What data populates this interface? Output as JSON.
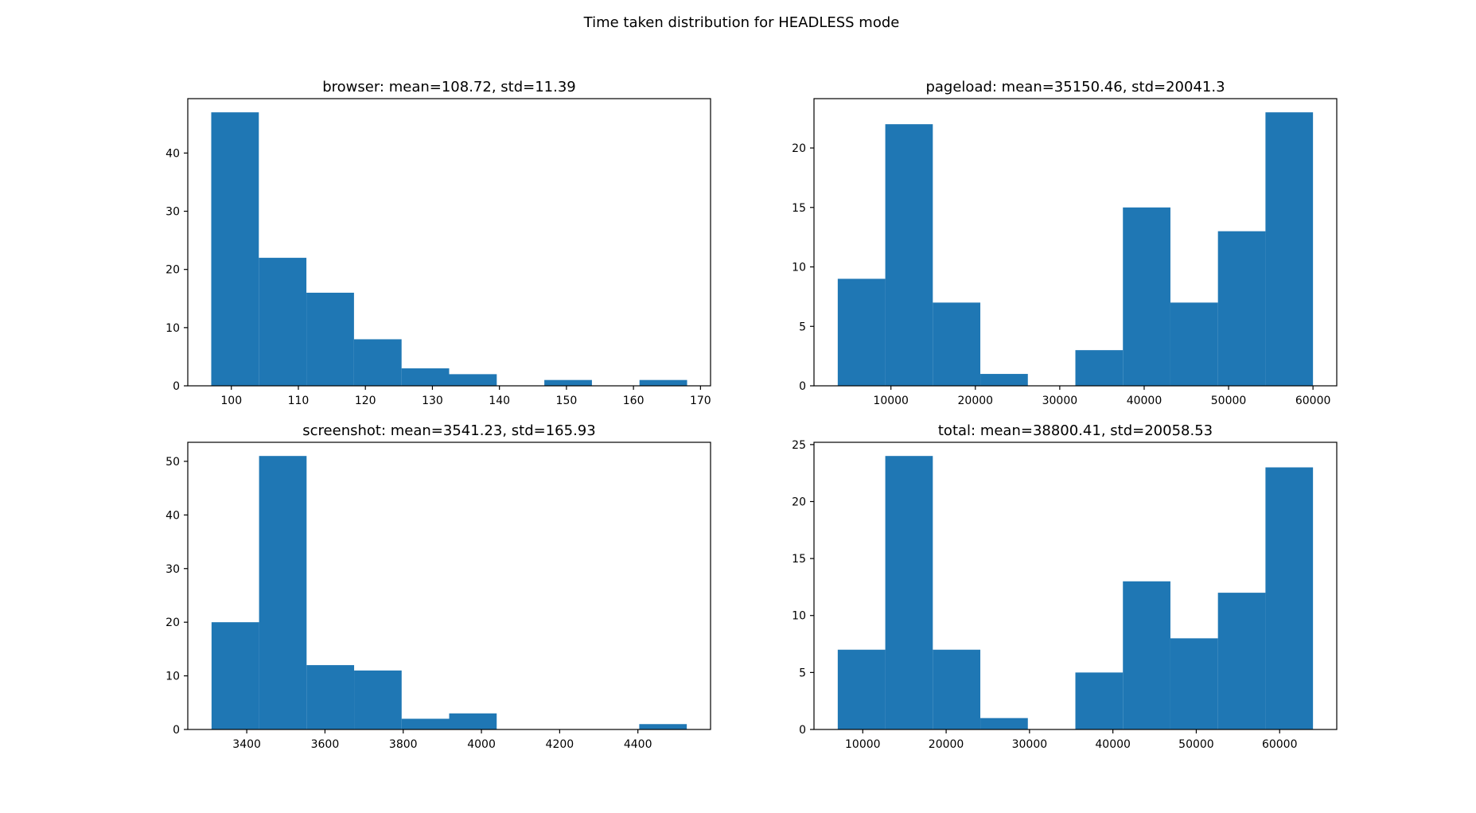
{
  "figure": {
    "title": "Time taken distribution for HEADLESS mode"
  },
  "colors": {
    "bar": "#1f77b4"
  },
  "chart_data": [
    {
      "type": "bar",
      "subtype": "histogram",
      "title": "browser: mean=108.72, std=11.39",
      "bin_edges": [
        97,
        104.1,
        111.2,
        118.3,
        125.4,
        132.5,
        139.6,
        146.7,
        153.8,
        160.9,
        168
      ],
      "values": [
        47,
        22,
        16,
        8,
        3,
        2,
        0,
        1,
        0,
        1
      ],
      "xlim": [
        93.5,
        171.5
      ],
      "ylim": [
        0,
        49.35
      ],
      "xticks": [
        100,
        110,
        120,
        130,
        140,
        150,
        160,
        170
      ],
      "yticks": [
        0,
        10,
        20,
        30,
        40
      ],
      "grid": false
    },
    {
      "type": "bar",
      "subtype": "histogram",
      "title": "pageload: mean=35150.46, std=20041.3",
      "bin_edges": [
        3700,
        9330,
        14960,
        20590,
        26220,
        31850,
        37480,
        43110,
        48740,
        54370,
        60000
      ],
      "values": [
        9,
        22,
        7,
        1,
        0,
        3,
        15,
        7,
        13,
        23
      ],
      "xlim": [
        885,
        62815
      ],
      "ylim": [
        0,
        24.15
      ],
      "xticks": [
        10000,
        20000,
        30000,
        40000,
        50000,
        60000
      ],
      "yticks": [
        0,
        5,
        10,
        15,
        20
      ],
      "grid": false
    },
    {
      "type": "bar",
      "subtype": "histogram",
      "title": "screenshot: mean=3541.23, std=165.93",
      "bin_edges": [
        3310,
        3431.5,
        3553,
        3674.5,
        3796,
        3917.5,
        4039,
        4160.5,
        4282,
        4403.5,
        4525
      ],
      "values": [
        20,
        51,
        12,
        11,
        2,
        3,
        0,
        0,
        0,
        1
      ],
      "xlim": [
        3249.25,
        4585.75
      ],
      "ylim": [
        0,
        53.55
      ],
      "xticks": [
        3400,
        3600,
        3800,
        4000,
        4200,
        4400
      ],
      "yticks": [
        0,
        10,
        20,
        30,
        40,
        50
      ],
      "grid": false
    },
    {
      "type": "bar",
      "subtype": "histogram",
      "title": "total: mean=38800.41, std=20058.53",
      "bin_edges": [
        7000,
        12700,
        18400,
        24100,
        29800,
        35500,
        41200,
        46900,
        52600,
        58300,
        64000
      ],
      "values": [
        7,
        24,
        7,
        1,
        0,
        5,
        13,
        8,
        12,
        23
      ],
      "xlim": [
        4150,
        66850
      ],
      "ylim": [
        0,
        25.2
      ],
      "xticks": [
        10000,
        20000,
        30000,
        40000,
        50000,
        60000
      ],
      "yticks": [
        0,
        5,
        10,
        15,
        20,
        25
      ],
      "grid": false
    }
  ]
}
